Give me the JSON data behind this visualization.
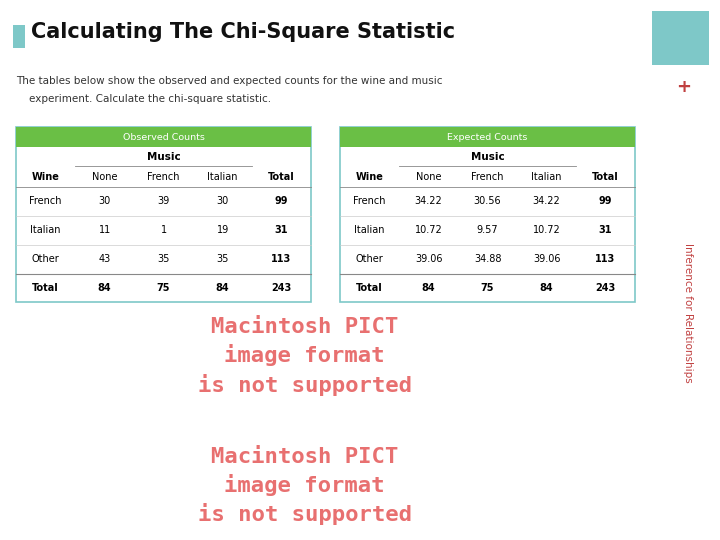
{
  "title": "Calculating The Chi-Square Statistic",
  "title_bullet_color": "#7ec8c8",
  "subtitle_line1": "The tables below show the observed and expected counts for the wine and music",
  "subtitle_line2": "    experiment. Calculate the chi-square statistic.",
  "sidebar_text": "Inference for Relationships",
  "sidebar_color": "#7ec8c8",
  "sidebar_plus_color": "#c04040",
  "table_header_color": "#6abf45",
  "table_border_color": "#7ec8c8",
  "obs_header": "Observed Counts",
  "exp_header": "Expected Counts",
  "music_label": "Music",
  "col_headers": [
    "Wine",
    "None",
    "French",
    "Italian",
    "Total"
  ],
  "obs_rows": [
    [
      "French",
      "30",
      "39",
      "30",
      "99"
    ],
    [
      "Italian",
      "11",
      "1",
      "19",
      "31"
    ],
    [
      "Other",
      "43",
      "35",
      "35",
      "113"
    ],
    [
      "Total",
      "84",
      "75",
      "84",
      "243"
    ]
  ],
  "exp_rows": [
    [
      "French",
      "34.22",
      "30.56",
      "34.22",
      "99"
    ],
    [
      "Italian",
      "10.72",
      "9.57",
      "10.72",
      "31"
    ],
    [
      "Other",
      "39.06",
      "34.88",
      "39.06",
      "113"
    ],
    [
      "Total",
      "84",
      "75",
      "84",
      "243"
    ]
  ],
  "pict_text_1": "Macintosh PICT\nimage format\nis not supported",
  "pict_text_2": "Macintosh PICT\nimage format\nis not supported",
  "pict_text_color": "#e87070",
  "bg_color": "#ffffff"
}
